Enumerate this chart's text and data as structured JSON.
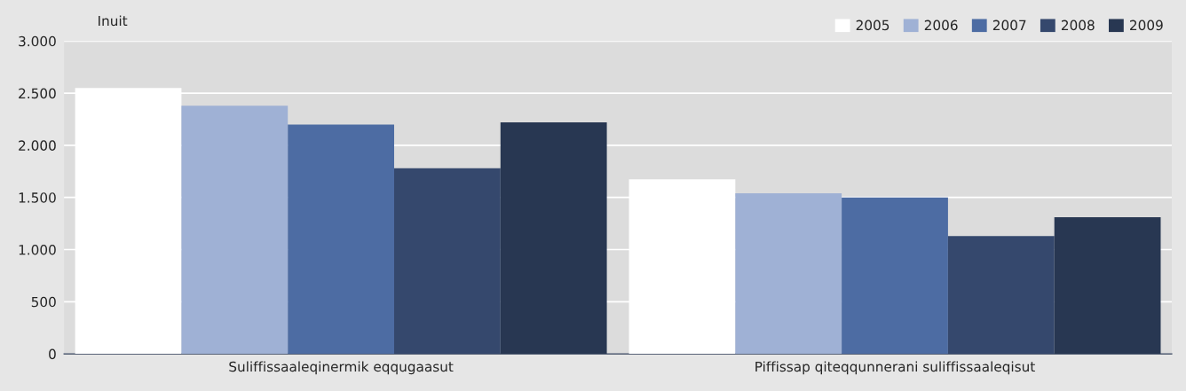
{
  "chart_data": {
    "type": "bar",
    "ylabel": "Inuit",
    "categories": [
      "Suliffissaaleqinermik eqqugaasut",
      "Piffissap qiteqqunnerani suliffissaaleqisut"
    ],
    "series": [
      {
        "name": "2005",
        "color": "#ffffff",
        "values": [
          2550,
          1675
        ]
      },
      {
        "name": "2006",
        "color": "#9fb1d5",
        "values": [
          2380,
          1540
        ]
      },
      {
        "name": "2007",
        "color": "#4d6ca3",
        "values": [
          2200,
          1500
        ]
      },
      {
        "name": "2008",
        "color": "#35486d",
        "values": [
          1780,
          1130
        ]
      },
      {
        "name": "2009",
        "color": "#283752",
        "values": [
          2220,
          1310
        ]
      }
    ],
    "ylim": [
      0,
      3000
    ],
    "yticks": [
      0,
      500,
      {
        "value": 1000,
        "label": "1.000"
      },
      {
        "value": 1500,
        "label": "1.500"
      },
      {
        "value": 2000,
        "label": "2.000"
      },
      {
        "value": 2500,
        "label": "2.500"
      },
      {
        "value": 3000,
        "label": "3.000"
      }
    ],
    "grid": "y",
    "legend": "top right"
  }
}
